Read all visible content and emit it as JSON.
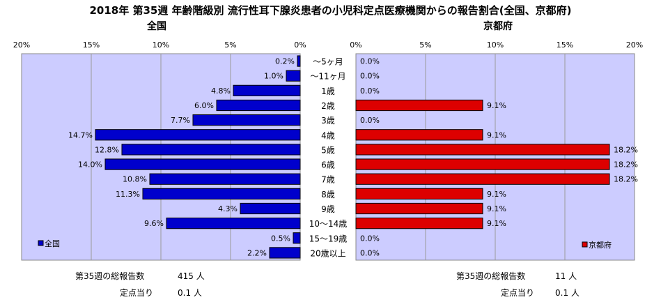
{
  "title": "2018年 第35週 年齢階級別 流行性耳下腺炎患者の小児科定点医療機関からの報告割合(全国、京都府)",
  "chart_data": {
    "type": "bar",
    "categories": [
      "～5ヶ月",
      "～11ヶ月",
      "1歳",
      "2歳",
      "3歳",
      "4歳",
      "5歳",
      "6歳",
      "7歳",
      "8歳",
      "9歳",
      "10～14歳",
      "15～19歳",
      "20歳以上"
    ],
    "xlim": [
      0,
      20
    ],
    "tick_values": [
      0,
      5,
      10,
      15,
      20
    ],
    "tick_labels": [
      "0%",
      "5%",
      "10%",
      "15%",
      "20%"
    ],
    "series": [
      {
        "name": "全国",
        "panel_title": "全国",
        "color": "#0000cc",
        "values": [
          0.2,
          1.0,
          4.8,
          6.0,
          7.7,
          14.7,
          12.8,
          14.0,
          10.8,
          11.3,
          4.3,
          9.6,
          0.5,
          2.2
        ],
        "labels": [
          "0.2%",
          "1.0%",
          "4.8%",
          "6.0%",
          "7.7%",
          "14.7%",
          "12.8%",
          "14.0%",
          "10.8%",
          "11.3%",
          "4.3%",
          "9.6%",
          "0.5%",
          "2.2%"
        ]
      },
      {
        "name": "京都府",
        "panel_title": "京都府",
        "color": "#dd0000",
        "values": [
          0.0,
          0.0,
          0.0,
          9.1,
          0.0,
          9.1,
          18.2,
          18.2,
          18.2,
          9.1,
          9.1,
          9.1,
          0.0,
          0.0
        ],
        "labels": [
          "0.0%",
          "0.0%",
          "0.0%",
          "9.1%",
          "0.0%",
          "9.1%",
          "18.2%",
          "18.2%",
          "18.2%",
          "9.1%",
          "9.1%",
          "9.1%",
          "0.0%",
          "0.0%"
        ]
      }
    ],
    "plot_background": "#ccccff",
    "grid": true,
    "legend_position": "bottom-left / bottom-right"
  },
  "footer": {
    "national": {
      "total_label": "第35週の総報告数",
      "total_value": "415 人",
      "per_label": "定点当り",
      "per_value": "0.1 人"
    },
    "kyoto": {
      "total_label": "第35週の総報告数",
      "total_value": "11 人",
      "per_label": "定点当り",
      "per_value": "0.1 人"
    }
  }
}
